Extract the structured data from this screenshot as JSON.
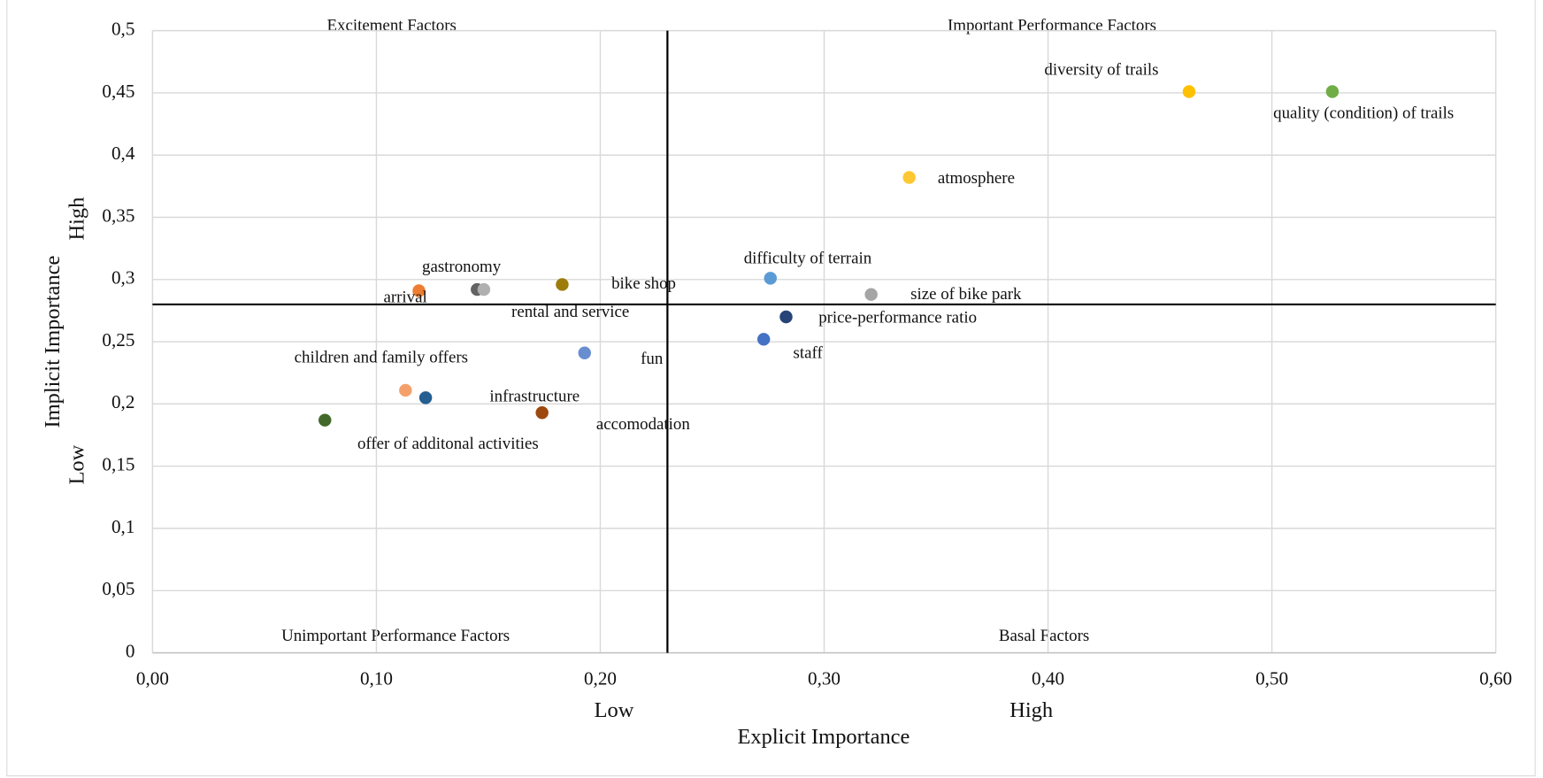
{
  "chart_data": {
    "type": "scatter",
    "x_label": "Explicit Importance",
    "y_label": "Implicit Importance",
    "x_low": "Low",
    "x_high": "High",
    "y_low": "Low",
    "y_high": "High",
    "quadrants": {
      "top_left": "Excitement Factors",
      "top_right": "Important Performance Factors",
      "bottom_left": "Unimportant Performance Factors",
      "bottom_right": "Basal Factors"
    },
    "x_divider": 0.23,
    "y_divider": 0.28,
    "xlim": [
      0,
      0.6
    ],
    "ylim": [
      0,
      0.5
    ],
    "xticks": [
      {
        "value": 0,
        "label": "0,00"
      },
      {
        "value": 0.1,
        "label": "0,10"
      },
      {
        "value": 0.2,
        "label": "0,20"
      },
      {
        "value": 0.3,
        "label": "0,30"
      },
      {
        "value": 0.4,
        "label": "0,40"
      },
      {
        "value": 0.5,
        "label": "0,50"
      },
      {
        "value": 0.6,
        "label": "0,60"
      }
    ],
    "yticks": [
      0,
      {
        "value": 0.05,
        "label": "0,05"
      },
      {
        "value": 0.1,
        "label": "0,1"
      },
      {
        "value": 0.15,
        "label": "0,15"
      },
      {
        "value": 0.2,
        "label": "0,2"
      },
      {
        "value": 0.25,
        "label": "0,25"
      },
      {
        "value": 0.3,
        "label": "0,3"
      },
      {
        "value": 0.35,
        "label": "0,35"
      },
      {
        "value": 0.4,
        "label": "0,4"
      },
      {
        "value": 0.45,
        "label": "0,45"
      },
      {
        "value": 0.5,
        "label": "0,5"
      }
    ],
    "grid": true,
    "points": [
      {
        "name": "diversity of trails",
        "color": "#ffc000",
        "x": 0.463,
        "y": 0.451
      },
      {
        "name": "quality (condition) of trails",
        "color": "#70ad47",
        "x": 0.527,
        "y": 0.451
      },
      {
        "name": "atmosphere",
        "color": "#ffc732",
        "x": 0.338,
        "y": 0.382
      },
      {
        "name": "difficulty of terrain",
        "color": "#5b9bd5",
        "x": 0.276,
        "y": 0.301
      },
      {
        "name": "size of bike park",
        "color": "#a5a5a5",
        "x": 0.321,
        "y": 0.288
      },
      {
        "name": "price-performance ratio",
        "color": "#264478",
        "x": 0.283,
        "y": 0.27
      },
      {
        "name": "staff",
        "color": "#4472c4",
        "x": 0.273,
        "y": 0.252
      },
      {
        "name": "bike shop",
        "color": "#9e7c0c",
        "x": 0.183,
        "y": 0.296
      },
      {
        "name": "gastronomy",
        "color": "#636363",
        "x": 0.145,
        "y": 0.292
      },
      {
        "name": "rental and service",
        "color": "#b0b0b0",
        "x": 0.148,
        "y": 0.292
      },
      {
        "name": "arrival",
        "color": "#ed7d31",
        "x": 0.119,
        "y": 0.291
      },
      {
        "name": "fun",
        "color": "#698ed0",
        "x": 0.193,
        "y": 0.241
      },
      {
        "name": "children and family offers",
        "color": "#f4a06b",
        "x": 0.113,
        "y": 0.211
      },
      {
        "name": "infrastructure",
        "color": "#255e91",
        "x": 0.122,
        "y": 0.205
      },
      {
        "name": "accomodation",
        "color": "#9e480e",
        "x": 0.174,
        "y": 0.193
      },
      {
        "name": "offer of additonal activities",
        "color": "#43682b",
        "x": 0.077,
        "y": 0.187
      }
    ]
  }
}
